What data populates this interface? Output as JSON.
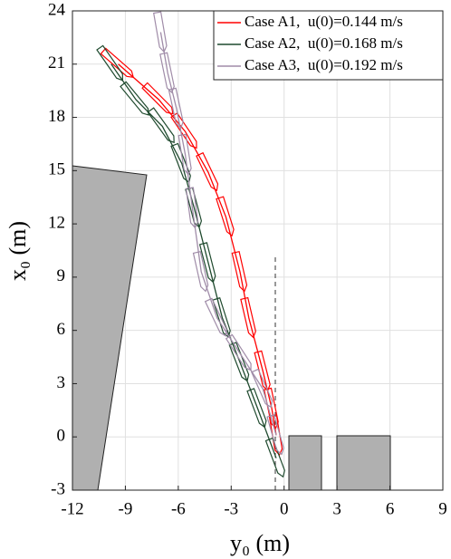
{
  "chart_data": {
    "type": "line",
    "x_label": "y₀ (m)",
    "y_label": "x₀ (m)",
    "xlim": [
      -12,
      9
    ],
    "xticks": [
      -12,
      -9,
      -6,
      -3,
      0,
      3,
      6,
      9
    ],
    "ylim": [
      -3,
      24
    ],
    "yticks": [
      -3,
      0,
      3,
      6,
      9,
      12,
      15,
      18,
      21,
      24
    ],
    "grid": true,
    "legend": "upper right",
    "series": [
      {
        "name": "Case A1,  u(0)=0.144 m/s",
        "color": "#ff0000",
        "x": [
          -9.4,
          -7.1,
          -5.6,
          -4.3,
          -3.3,
          -2.5,
          -2.0,
          -1.2,
          -0.7,
          -0.45
        ],
        "values": [
          21.0,
          19.0,
          17.2,
          14.9,
          12.4,
          9.3,
          6.7,
          3.7,
          1.6,
          0.1
        ]
      },
      {
        "name": "Case A2,  u(0)=0.168 m/s",
        "color": "#1f4a2e",
        "x": [
          -9.8,
          -8.4,
          -6.9,
          -5.8,
          -5.1,
          -4.3,
          -3.5,
          -2.5,
          -1.5,
          -0.45
        ],
        "values": [
          21.0,
          19.0,
          17.5,
          15.4,
          12.9,
          9.8,
          6.7,
          4.2,
          1.6,
          -1.2
        ]
      },
      {
        "name": "Case A3,  u(0)=0.192 m/s",
        "color": "#a08ca8",
        "x": [
          -7.0,
          -6.6,
          -6.1,
          -5.6,
          -5.2,
          -4.7,
          -3.8,
          -2.5,
          -1.2,
          -0.45
        ],
        "values": [
          22.8,
          20.5,
          18.5,
          15.9,
          12.9,
          9.3,
          6.7,
          4.7,
          2.7,
          0.1
        ]
      }
    ]
  }
}
